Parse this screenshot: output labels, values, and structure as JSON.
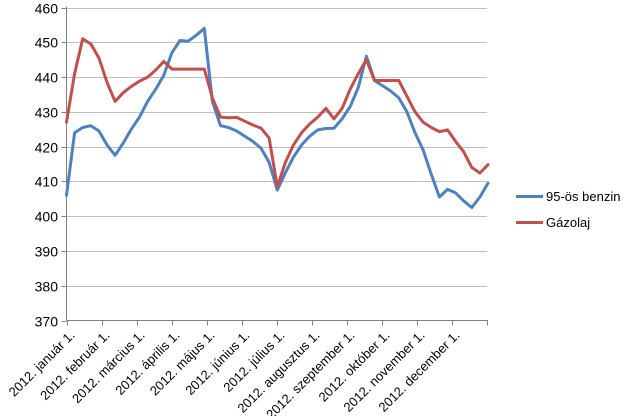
{
  "chart_data": {
    "type": "line",
    "title": "",
    "xlabel": "",
    "ylabel": "",
    "ylim": [
      370,
      460
    ],
    "y_ticks": [
      370,
      380,
      390,
      400,
      410,
      420,
      430,
      440,
      450,
      460
    ],
    "grid": "horizontal",
    "legend_position": "right",
    "x_tick_labels": [
      "2012. január 1.",
      "2012. február 1.",
      "2012. március 1.",
      "2012. április 1.",
      "2012. május 1.",
      "2012. június 1.",
      "2012. július 1.",
      "2012. augusztus 1.",
      "2012. szeptember 1.",
      "2012. október 1.",
      "2012. november 1.",
      "2012. december 1."
    ],
    "series": [
      {
        "name": "95-ös benzin",
        "color": "#4F81BD",
        "values": [
          406,
          424,
          425.5,
          426,
          424.5,
          420.5,
          417.5,
          421,
          425,
          428.5,
          433,
          436.5,
          440.5,
          447,
          450.5,
          450.3,
          452,
          454,
          433,
          426,
          425.5,
          424.5,
          423,
          421.5,
          419.5,
          415.5,
          407.5,
          412.5,
          417,
          420.5,
          423,
          424.8,
          425.2,
          425.3,
          428,
          431.5,
          437,
          446,
          439,
          437.5,
          436,
          434,
          430,
          424,
          419,
          412,
          405.5,
          407.7,
          406.7,
          404.4,
          402.5,
          405.5,
          409.5
        ]
      },
      {
        "name": "Gázolaj",
        "color": "#C0504D",
        "values": [
          427,
          441,
          451,
          449.5,
          445.5,
          438.5,
          433,
          435.5,
          437.3,
          438.8,
          440,
          442,
          444.5,
          442.3,
          442.3,
          442.3,
          442.3,
          442.3,
          434,
          428.5,
          428.3,
          428.4,
          427.3,
          426.2,
          425.3,
          422.5,
          408.5,
          415.5,
          420.5,
          424,
          426.5,
          428.5,
          431,
          428,
          431,
          436.5,
          441,
          445,
          439,
          439,
          439,
          439,
          434.5,
          430,
          427,
          425.5,
          424.3,
          424.8,
          421.5,
          418.5,
          414,
          412.4,
          414.8
        ]
      }
    ],
    "colors": {
      "gridline": "#BFBFBF",
      "axis": "#808080",
      "text": "#000000"
    }
  }
}
